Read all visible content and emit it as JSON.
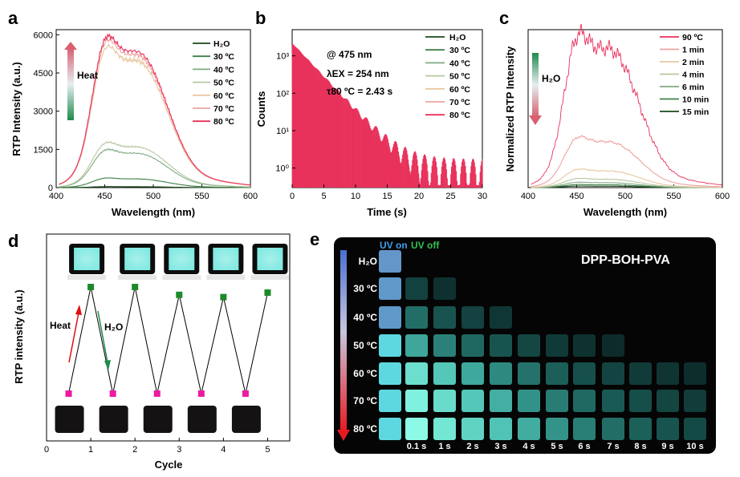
{
  "panel_labels": [
    "a",
    "b",
    "c",
    "d",
    "e"
  ],
  "colors": {
    "H2O": "#1a4a1a",
    "30": "#3f7f4a",
    "40": "#7faa82",
    "50": "#b7c7a2",
    "60": "#e8c7a0",
    "70": "#f0a3a3",
    "80": "#e8305a",
    "90": "#e8305a"
  },
  "chart_data": [
    {
      "panel": "a",
      "type": "line",
      "xlabel": "Wavelength (nm)",
      "ylabel": "RTP Intensity (a.u.)",
      "xlim": [
        400,
        600
      ],
      "ylim": [
        0,
        6200
      ],
      "xticks": [
        400,
        450,
        500,
        550,
        600
      ],
      "yticks": [
        0,
        1500,
        3000,
        4500,
        6000
      ],
      "arrow_label": "Heat",
      "series": [
        {
          "name": "H₂O",
          "key": "H2O",
          "peak": 40
        },
        {
          "name": "30 ºC",
          "key": "30",
          "peak": 380
        },
        {
          "name": "40 ºC",
          "key": "40",
          "peak": 1500
        },
        {
          "name": "50 ºC",
          "key": "50",
          "peak": 1780
        },
        {
          "name": "60 ºC",
          "key": "60",
          "peak": 5550
        },
        {
          "name": "70 ºC",
          "key": "70",
          "peak": 5800
        },
        {
          "name": "80 ºC",
          "key": "80",
          "peak": 5950
        }
      ]
    },
    {
      "panel": "b",
      "type": "line",
      "xlabel": "Time (s)",
      "ylabel": "Counts",
      "yscale": "log",
      "xlim": [
        0,
        30
      ],
      "ylim": [
        0.3,
        5000
      ],
      "xticks": [
        0,
        5,
        10,
        15,
        20,
        25,
        30
      ],
      "yticks": [
        "10⁰",
        "10¹",
        "10²",
        "10³"
      ],
      "annotations": [
        "@ 475 nm",
        "λEX = 254 nm",
        "τ80 ºC = 2.43 s"
      ],
      "series": [
        {
          "name": "H₂O",
          "key": "H2O",
          "tau": 0.3
        },
        {
          "name": "30 ºC",
          "key": "30",
          "tau": 1.3
        },
        {
          "name": "40 ºC",
          "key": "40",
          "tau": 1.6
        },
        {
          "name": "50 ºC",
          "key": "50",
          "tau": 1.9
        },
        {
          "name": "60 ºC",
          "key": "60",
          "tau": 2.2
        },
        {
          "name": "70 ºC",
          "key": "70",
          "tau": 2.35
        },
        {
          "name": "80 ºC",
          "key": "80",
          "tau": 2.43
        }
      ]
    },
    {
      "panel": "c",
      "type": "line",
      "xlabel": "Wavelength (nm)",
      "ylabel": "Normalized RTP Intensity",
      "xlim": [
        400,
        600
      ],
      "xticks": [
        400,
        450,
        500,
        550,
        600
      ],
      "arrow_label": "H₂O",
      "series": [
        {
          "name": "90 ºC",
          "key": "90",
          "peak": 1.0
        },
        {
          "name": "1 min",
          "key": "70",
          "peak": 0.33
        },
        {
          "name": "2 min",
          "key": "60",
          "peak": 0.12
        },
        {
          "name": "4 min",
          "key": "50",
          "peak": 0.06
        },
        {
          "name": "6 min",
          "key": "40",
          "peak": 0.035
        },
        {
          "name": "10 min",
          "key": "30",
          "peak": 0.02
        },
        {
          "name": "15 min",
          "key": "H2O",
          "peak": 0.01
        }
      ]
    },
    {
      "panel": "d",
      "type": "line",
      "xlabel": "Cycle",
      "ylabel": "RTP intensity (a.u.)",
      "xlim": [
        0,
        5.5
      ],
      "xticks": [
        0,
        1,
        2,
        3,
        4,
        5
      ],
      "heat_label": "Heat",
      "water_label": "H₂O",
      "x": [
        0.5,
        1,
        1.5,
        2,
        2.5,
        3,
        3.5,
        4,
        4.5,
        5
      ],
      "y": [
        0.05,
        1.0,
        0.05,
        1.0,
        0.05,
        0.93,
        0.05,
        0.91,
        0.05,
        0.95
      ]
    }
  ],
  "panel_e": {
    "title": "DPP-BOH-PVA",
    "uv_on": "UV on",
    "uv_off": "UV off",
    "rows": [
      "H₂O",
      "30 ºC",
      "40 ºC",
      "50 ºC",
      "60 ºC",
      "70 ºC",
      "80 ºC"
    ],
    "times": [
      "0.1 s",
      "1 s",
      "2 s",
      "3 s",
      "4 s",
      "5 s",
      "6 s",
      "7 s",
      "8 s",
      "9 s",
      "10 s"
    ]
  }
}
